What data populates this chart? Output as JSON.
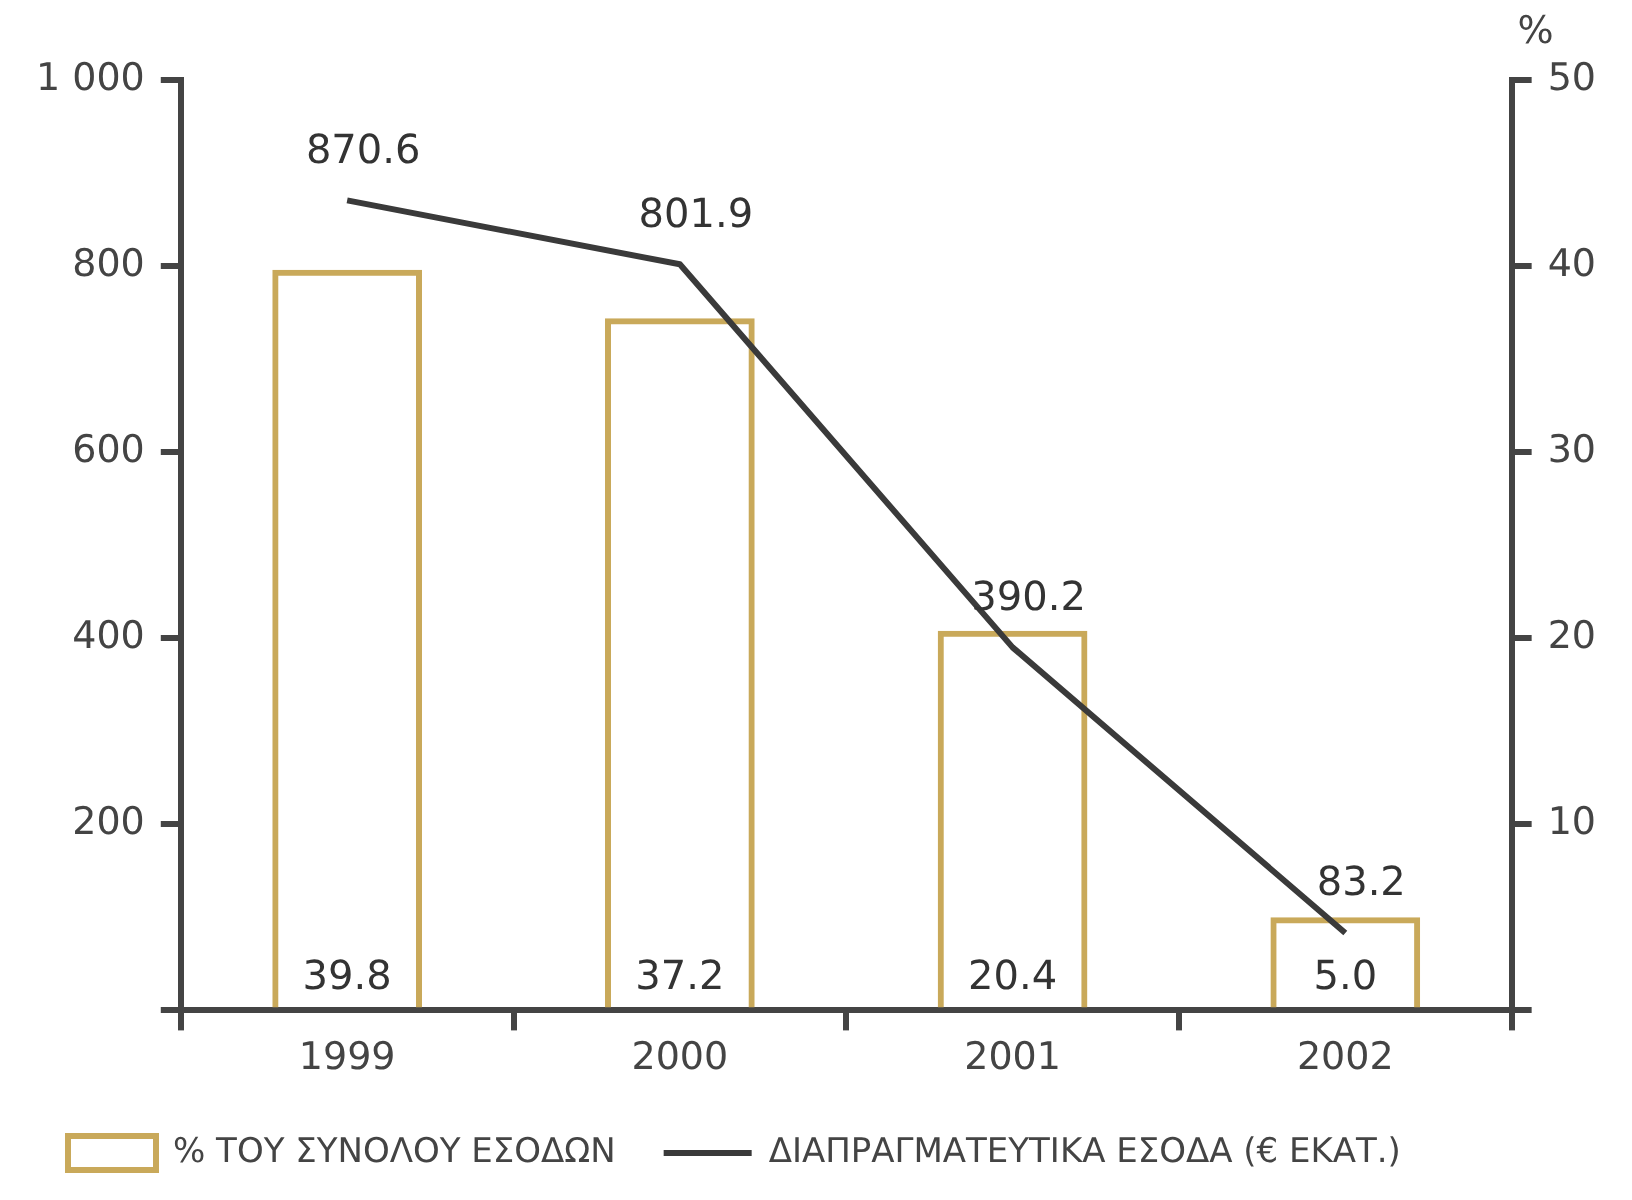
{
  "chart_data": {
    "type": "bar",
    "categories": [
      "1999",
      "2000",
      "2001",
      "2002"
    ],
    "series": [
      {
        "name": "% ΤΟΥ ΣΥΝΟΛΟΥ ΕΣΟΔΩΝ",
        "axis": "y2",
        "color": "#c9a95a",
        "values": [
          39.8,
          37.2,
          20.4,
          5.0
        ],
        "value_labels": [
          "39.8",
          "37.2",
          "20.4",
          "5.0"
        ]
      },
      {
        "name": "ΔΙΑΠΡΑΓΜΑΤΕΥΤΙΚΑ ΕΣΟΔΑ (€ ΕΚΑΤ.)",
        "type": "line",
        "color": "#3a3a3a",
        "values": [
          870.6,
          801.9,
          390.2,
          83.2
        ],
        "value_labels": [
          "870.6",
          "801.9",
          "390.2",
          "83.2"
        ]
      }
    ],
    "ylim": [
      0,
      1000
    ],
    "yticks": [
      {
        "value": 0,
        "label": null
      },
      200,
      400,
      600,
      800,
      {
        "value": 1000,
        "label": "1 000"
      }
    ],
    "y2lim": [
      0,
      50
    ],
    "y2ticks": [
      {
        "value": 0,
        "label": null
      },
      10,
      20,
      30,
      40,
      50
    ],
    "y2label": "%",
    "grid": false,
    "legend": "bottom",
    "marker": "none",
    "line_style": "solid"
  }
}
